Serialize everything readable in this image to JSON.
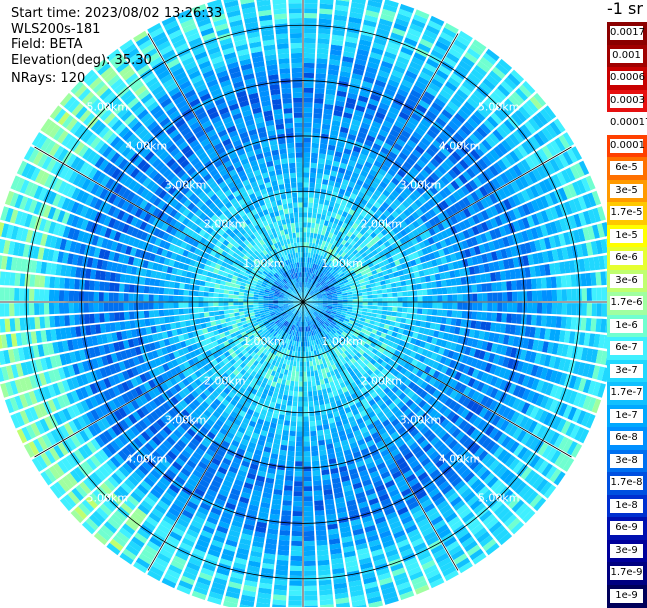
{
  "info": {
    "start_time": "Start time: 2023/08/02 13:26:33",
    "instrument": "WLS200s-181",
    "field": "Field: BETA",
    "elevation": "Elevation(deg): 35.30",
    "nrays": "NRays: 120"
  },
  "colorbar": {
    "title": "-1 sr",
    "labels": [
      "0.0017",
      "0.001",
      "0.0006",
      "0.0003",
      "0.00017",
      "0.0001",
      "6e-5",
      "3e-5",
      "1.7e-5",
      "1e-5",
      "6e-6",
      "3e-6",
      "1.7e-6",
      "1e-6",
      "6e-7",
      "3e-7",
      "1.7e-7",
      "1e-7",
      "6e-8",
      "3e-8",
      "1.7e-8",
      "1e-8",
      "6e-9",
      "3e-9",
      "1.7e-9",
      "1e-9"
    ],
    "colors": [
      "#8b0000",
      "#a00000",
      "#c80000",
      "#e61010",
      "#ffffff",
      "#ff4000",
      "#ff7000",
      "#ff9a00",
      "#ffc800",
      "#ffff00",
      "#e6ff30",
      "#c0ff70",
      "#a0ffa0",
      "#70ffd0",
      "#40f0ff",
      "#20d8ff",
      "#10c0ff",
      "#00a8ff",
      "#0090ff",
      "#0070f0",
      "#0050e0",
      "#0030d0",
      "#0010b0",
      "#00009a",
      "#000080",
      "#00005a"
    ]
  },
  "chart_data": {
    "type": "heatmap",
    "projection": "polar (PPI scan)",
    "field": "BETA",
    "n_rays": 120,
    "max_range_km": 5.6,
    "range_rings_km": [
      1,
      2,
      3,
      4,
      5
    ],
    "ring_labels": [
      "1.00km",
      "2.00km",
      "3.00km",
      "4.00km",
      "5.00km"
    ],
    "spokes": 12,
    "value_range": [
      1e-09,
      0.0017
    ],
    "radial_profile_log10": [
      {
        "range_km": 0.0,
        "log10_beta": -6.3
      },
      {
        "range_km": 0.5,
        "log10_beta": -7.3
      },
      {
        "range_km": 1.0,
        "log10_beta": -6.3
      },
      {
        "range_km": 2.0,
        "log10_beta": -6.6
      },
      {
        "range_km": 3.0,
        "log10_beta": -7.2
      },
      {
        "range_km": 4.0,
        "log10_beta": -7.3
      },
      {
        "range_km": 4.8,
        "log10_beta": -6.6
      },
      {
        "range_km": 5.6,
        "log10_beta": -6.3
      }
    ],
    "colorscale": "log"
  }
}
